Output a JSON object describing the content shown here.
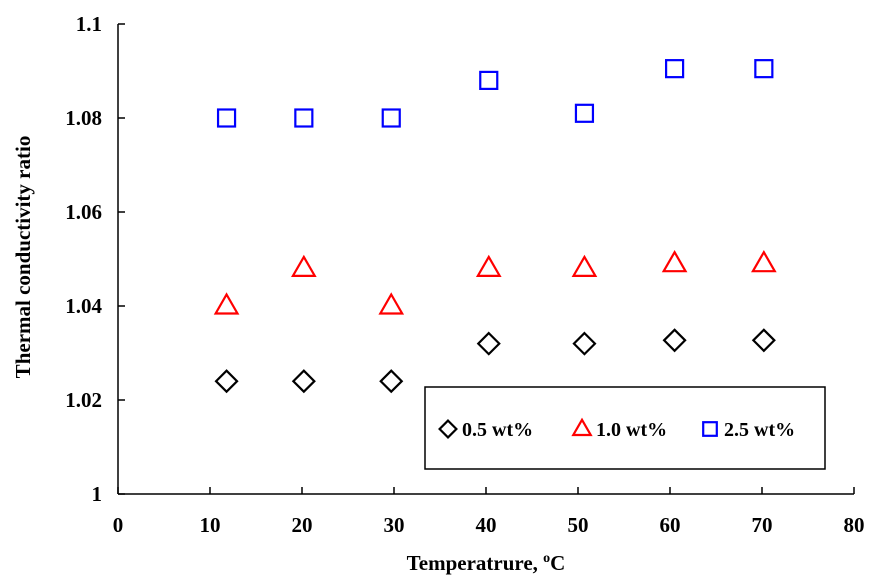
{
  "chart_data": {
    "type": "scatter",
    "title": "",
    "xlabel": "Temperatrure, ",
    "xlabel_superscript": "o",
    "xlabel_unit": "C",
    "ylabel": "Thermal conductivity ratio",
    "xlim": [
      0,
      80
    ],
    "ylim": [
      1,
      1.1
    ],
    "x_ticks": [
      0,
      10,
      20,
      30,
      40,
      50,
      60,
      70,
      80
    ],
    "x_tick_labels": [
      "0",
      "10",
      "20",
      "30",
      "40",
      "50",
      "60",
      "70",
      "80"
    ],
    "y_ticks": [
      1,
      1.02,
      1.04,
      1.06,
      1.08,
      1.1
    ],
    "y_tick_labels": [
      "1",
      "1.02",
      "1.04",
      "1.06",
      "1.08",
      "1.1"
    ],
    "grid": false,
    "legend_position": "bottom-right",
    "series": [
      {
        "name": "0.5 wt%",
        "marker": "diamond",
        "color": "#000000",
        "x": [
          11.8,
          20.2,
          29.7,
          40.3,
          50.7,
          60.5,
          70.2
        ],
        "y": [
          1.024,
          1.024,
          1.024,
          1.032,
          1.032,
          1.0327,
          1.0327
        ]
      },
      {
        "name": "1.0 wt%",
        "marker": "triangle",
        "color": "#ff0000",
        "x": [
          11.8,
          20.2,
          29.7,
          40.3,
          50.7,
          60.5,
          70.2
        ],
        "y": [
          1.04,
          1.048,
          1.04,
          1.048,
          1.048,
          1.049,
          1.049
        ]
      },
      {
        "name": "2.5 wt%",
        "marker": "square",
        "color": "#0000ff",
        "x": [
          11.8,
          20.2,
          29.7,
          40.3,
          50.7,
          60.5,
          70.2
        ],
        "y": [
          1.08,
          1.08,
          1.08,
          1.088,
          1.081,
          1.0905,
          1.0905
        ]
      }
    ]
  }
}
